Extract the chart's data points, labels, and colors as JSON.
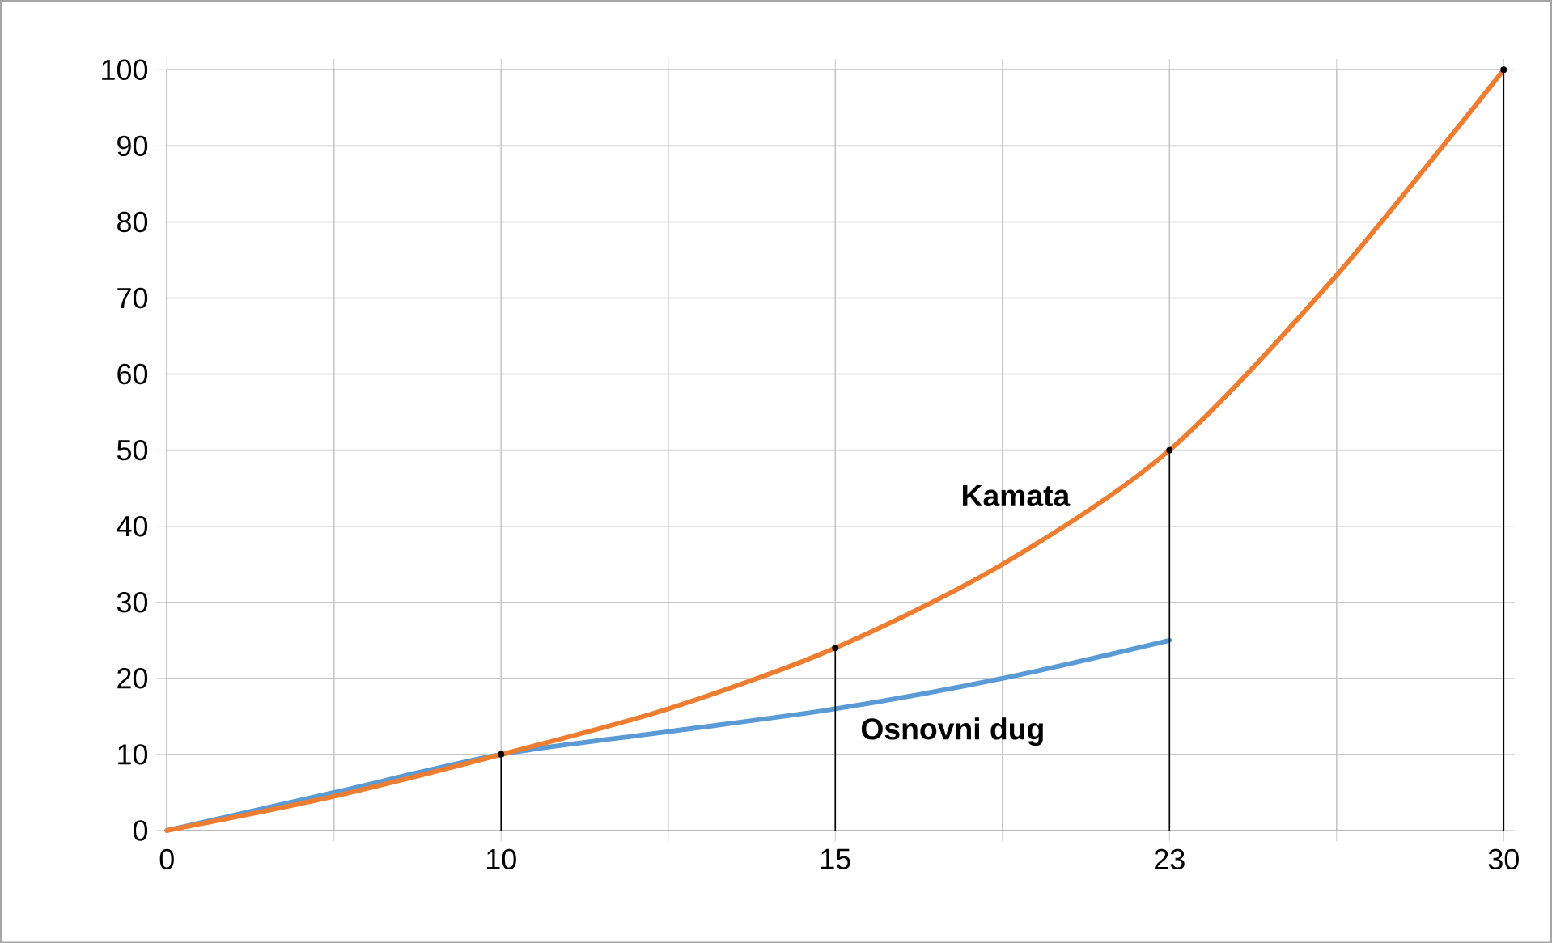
{
  "chart_data": {
    "type": "line",
    "categories": [
      "0",
      null,
      "10",
      null,
      "15",
      null,
      "23",
      null,
      "30"
    ],
    "series": [
      {
        "name": "Osnovni dug",
        "color": "#5b9bd5",
        "values": [
          0,
          5,
          10,
          13,
          16,
          20,
          25,
          null,
          null
        ]
      },
      {
        "name": "Kamata",
        "color": "#ed7d31",
        "values": [
          0,
          4.5,
          10,
          16,
          24,
          35,
          50,
          73,
          100
        ]
      },
      {
        "type": "lollipop",
        "color": "#000000",
        "values": [
          null,
          null,
          10,
          null,
          24,
          null,
          50,
          null,
          100
        ]
      }
    ],
    "ylim": [
      0,
      100
    ],
    "yticks": [
      0,
      10,
      20,
      30,
      40,
      50,
      60,
      70,
      80,
      90,
      100
    ],
    "grid": true,
    "marker": "none",
    "line_style": "solid"
  }
}
